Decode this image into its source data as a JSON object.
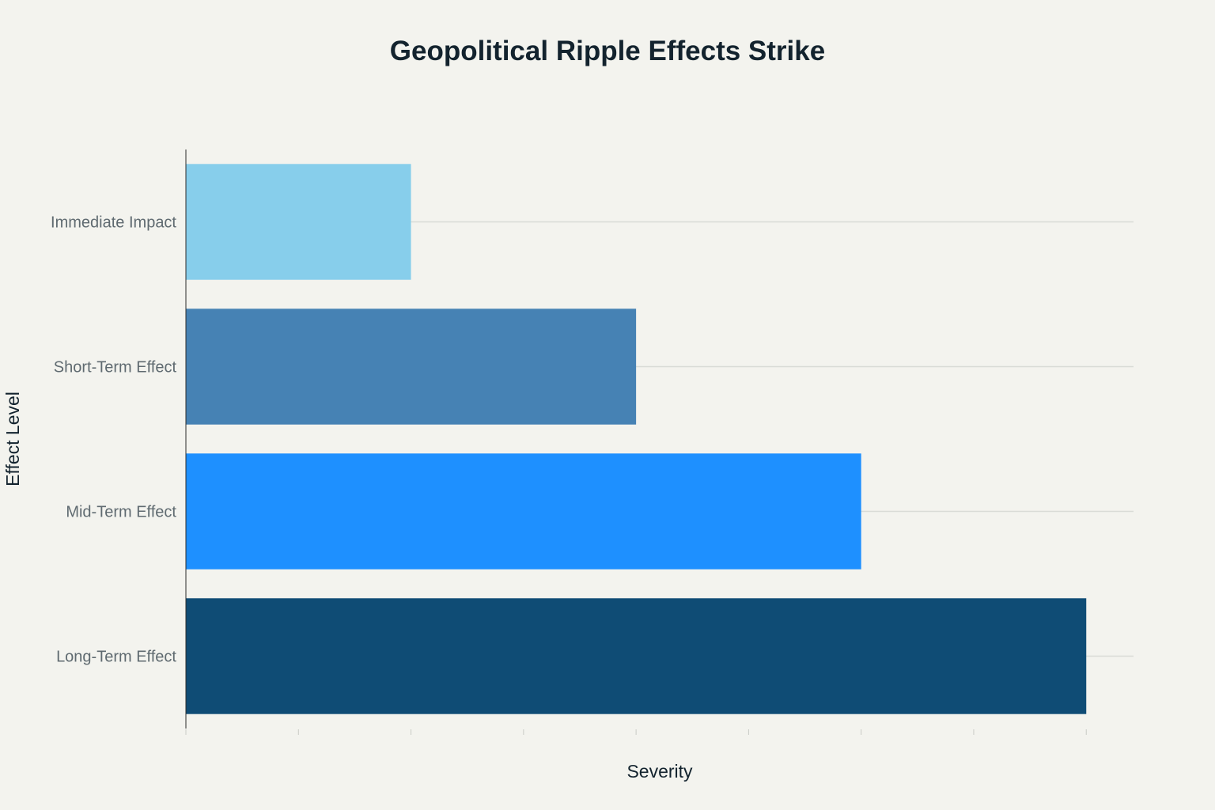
{
  "chart_data": {
    "type": "bar",
    "orientation": "horizontal",
    "title": "Geopolitical Ripple Effects Strike",
    "xlabel": "Severity",
    "ylabel": "Effect Level",
    "categories": [
      "Immediate Impact",
      "Short-Term Effect",
      "Mid-Term Effect",
      "Long-Term Effect"
    ],
    "values": [
      2,
      4,
      6,
      8
    ],
    "colors": [
      "#87ceeb",
      "#4682b4",
      "#1e90ff",
      "#0f4c75"
    ],
    "xlim": [
      0,
      8.42
    ],
    "x_ticks": [
      0,
      1,
      2,
      3,
      4,
      5,
      6,
      7,
      8
    ],
    "x_tick_labels_shown": false,
    "grid": "horizontal",
    "legend": "none"
  }
}
